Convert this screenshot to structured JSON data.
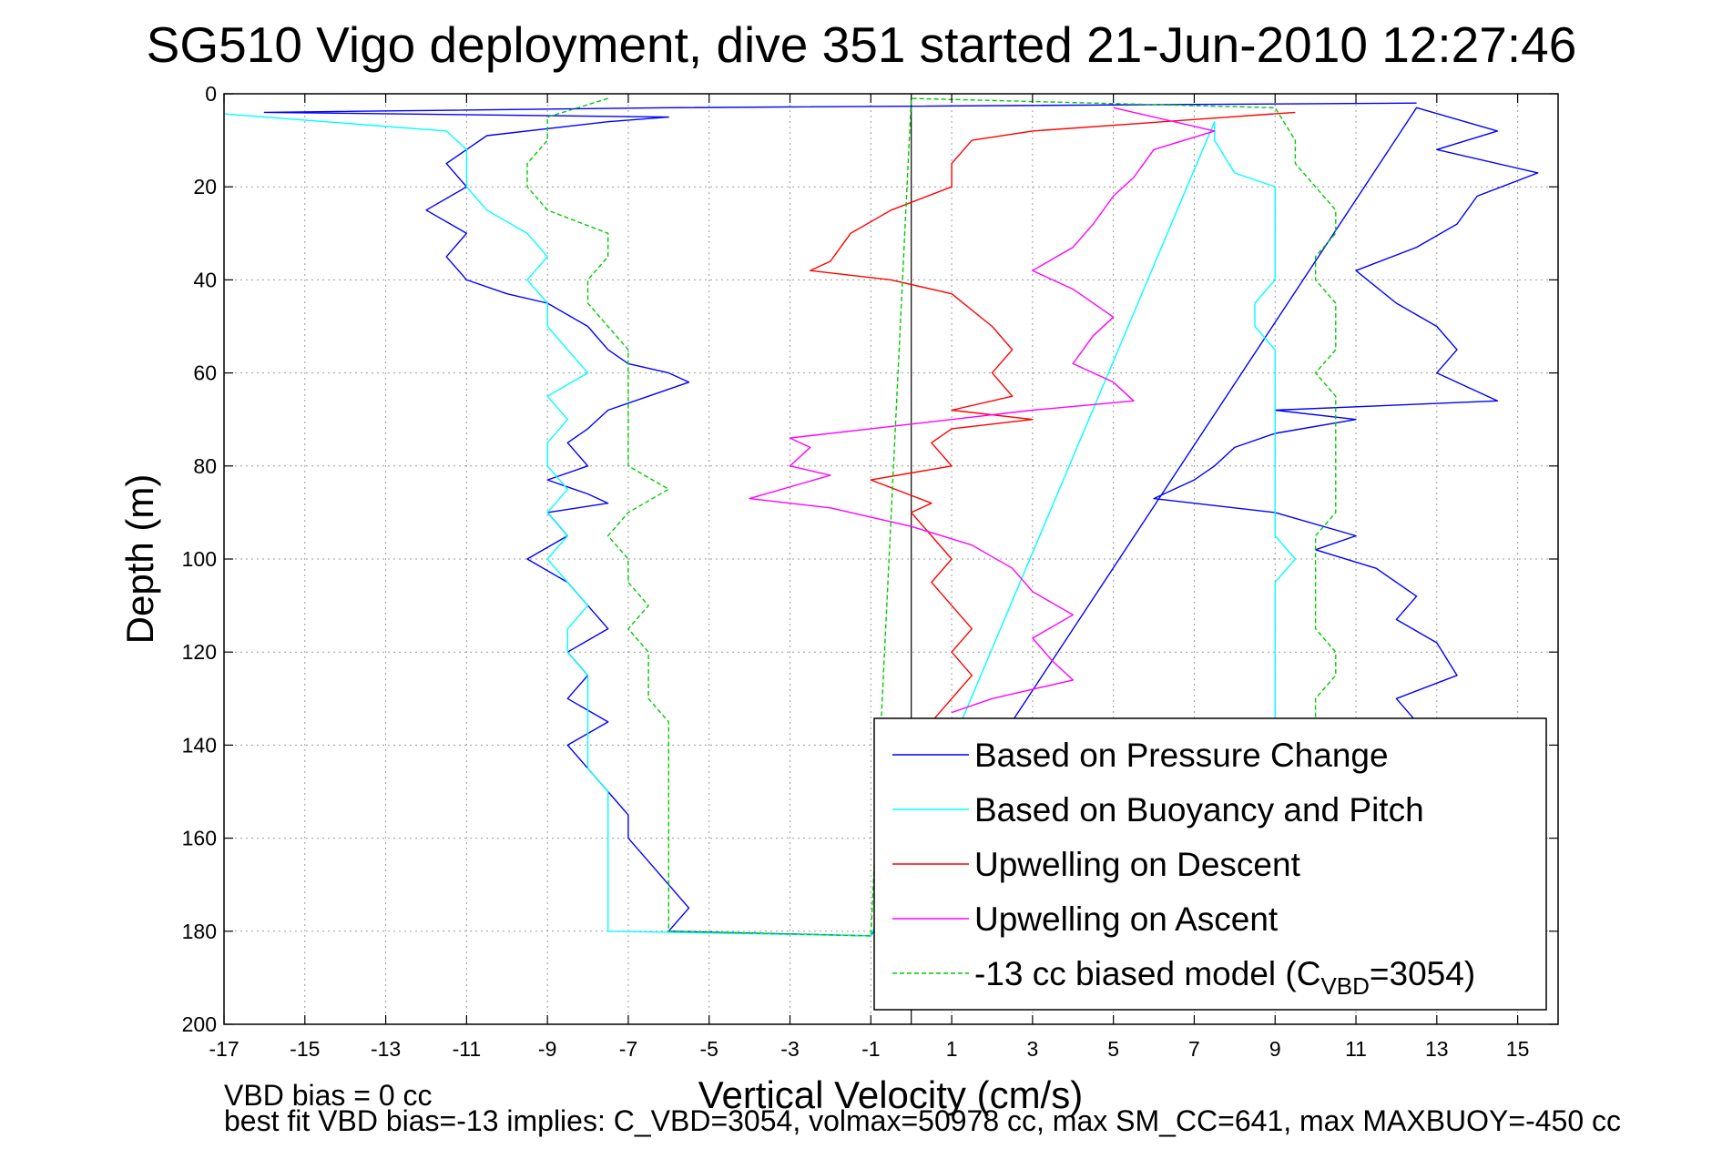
{
  "chart_data": {
    "type": "line",
    "title": "SG510 Vigo deployment, dive 351 started 21-Jun-2010 12:27:46",
    "xlabel": "Vertical Velocity (cm/s)",
    "ylabel": "Depth (m)",
    "xlim": [
      -17,
      16
    ],
    "ylim": [
      0,
      200
    ],
    "y_reversed": true,
    "x_ticks": [
      -17,
      -15,
      -13,
      -11,
      -9,
      -7,
      -5,
      -3,
      -1,
      1,
      3,
      5,
      7,
      9,
      11,
      13,
      15
    ],
    "y_ticks": [
      0,
      20,
      40,
      60,
      80,
      100,
      120,
      140,
      160,
      180,
      200
    ],
    "grid": true,
    "legend_position": "bottom-right",
    "vertical_reference_x": 0,
    "series": [
      {
        "name": "Based on Pressure Change",
        "color": "#0000ff",
        "style": "solid",
        "points": [
          [
            12.5,
            2
          ],
          [
            -6,
            3
          ],
          [
            -16,
            4
          ],
          [
            -6,
            5
          ],
          [
            -7.5,
            6
          ],
          [
            -10.5,
            9
          ],
          [
            -11,
            12
          ],
          [
            -11.5,
            15
          ],
          [
            -11,
            20
          ],
          [
            -12,
            25
          ],
          [
            -11,
            30
          ],
          [
            -11.5,
            35
          ],
          [
            -11,
            40
          ],
          [
            -10,
            43
          ],
          [
            -9,
            45
          ],
          [
            -8,
            50
          ],
          [
            -7.5,
            55
          ],
          [
            -7,
            58
          ],
          [
            -6,
            60
          ],
          [
            -5.5,
            62
          ],
          [
            -6.5,
            65
          ],
          [
            -7.5,
            68
          ],
          [
            -8,
            72
          ],
          [
            -8.5,
            75
          ],
          [
            -8,
            80
          ],
          [
            -9,
            83
          ],
          [
            -8,
            86
          ],
          [
            -7.5,
            88
          ],
          [
            -9,
            90
          ],
          [
            -8.5,
            95
          ],
          [
            -9.5,
            100
          ],
          [
            -8.5,
            105
          ],
          [
            -8,
            110
          ],
          [
            -7.5,
            115
          ],
          [
            -8.5,
            120
          ],
          [
            -8,
            125
          ],
          [
            -8.5,
            130
          ],
          [
            -7.5,
            135
          ],
          [
            -8.5,
            140
          ],
          [
            -8,
            145
          ],
          [
            -7.5,
            150
          ],
          [
            -7,
            155
          ],
          [
            -7,
            160
          ],
          [
            -6.5,
            165
          ],
          [
            -6,
            170
          ],
          [
            -5.5,
            175
          ],
          [
            -6,
            180
          ],
          [
            -1,
            181
          ],
          [
            12.5,
            3
          ],
          [
            14.5,
            8
          ],
          [
            13,
            12
          ],
          [
            15.5,
            17
          ],
          [
            14,
            22
          ],
          [
            13.5,
            28
          ],
          [
            12.5,
            33
          ],
          [
            11,
            38
          ],
          [
            12,
            45
          ],
          [
            13,
            50
          ],
          [
            13.5,
            55
          ],
          [
            13,
            60
          ],
          [
            14.5,
            66
          ],
          [
            9,
            68
          ],
          [
            11,
            70
          ],
          [
            9,
            73
          ],
          [
            8,
            76
          ],
          [
            7.5,
            80
          ],
          [
            7,
            83
          ],
          [
            6,
            87
          ],
          [
            9,
            90
          ],
          [
            11,
            95
          ],
          [
            10,
            98
          ],
          [
            11.5,
            102
          ],
          [
            12.5,
            108
          ],
          [
            12,
            113
          ],
          [
            13,
            118
          ],
          [
            13.5,
            125
          ],
          [
            12,
            130
          ],
          [
            12.5,
            135
          ]
        ]
      },
      {
        "name": "Based on Buoyancy and Pitch",
        "color": "#00ffff",
        "style": "solid",
        "points": [
          [
            -17.5,
            4
          ],
          [
            -11.5,
            8
          ],
          [
            -11,
            12
          ],
          [
            -11,
            20
          ],
          [
            -10.5,
            25
          ],
          [
            -9.5,
            30
          ],
          [
            -9,
            35
          ],
          [
            -9.5,
            40
          ],
          [
            -9,
            45
          ],
          [
            -9,
            50
          ],
          [
            -8.5,
            55
          ],
          [
            -8,
            60
          ],
          [
            -9,
            65
          ],
          [
            -8.5,
            70
          ],
          [
            -9,
            75
          ],
          [
            -9,
            80
          ],
          [
            -8.5,
            85
          ],
          [
            -9,
            90
          ],
          [
            -8.5,
            95
          ],
          [
            -9,
            100
          ],
          [
            -8.5,
            105
          ],
          [
            -8,
            110
          ],
          [
            -8.5,
            115
          ],
          [
            -8.5,
            120
          ],
          [
            -8,
            125
          ],
          [
            -8,
            130
          ],
          [
            -8,
            135
          ],
          [
            -8,
            140
          ],
          [
            -8,
            145
          ],
          [
            -7.5,
            150
          ],
          [
            -7.5,
            155
          ],
          [
            -7.5,
            160
          ],
          [
            -7.5,
            165
          ],
          [
            -7.5,
            170
          ],
          [
            -7.5,
            175
          ],
          [
            -7.5,
            180
          ],
          [
            -1,
            181
          ],
          [
            7.5,
            6
          ],
          [
            7.5,
            10
          ],
          [
            8,
            17
          ],
          [
            9,
            20
          ],
          [
            9,
            30
          ],
          [
            9,
            40
          ],
          [
            8.5,
            45
          ],
          [
            8.5,
            50
          ],
          [
            9,
            55
          ],
          [
            9,
            60
          ],
          [
            9,
            65
          ],
          [
            9,
            70
          ],
          [
            9,
            75
          ],
          [
            9,
            80
          ],
          [
            9,
            85
          ],
          [
            9,
            90
          ],
          [
            9,
            95
          ],
          [
            9.5,
            100
          ],
          [
            9,
            105
          ],
          [
            9,
            110
          ],
          [
            9,
            115
          ],
          [
            9,
            120
          ],
          [
            9,
            125
          ],
          [
            9,
            130
          ],
          [
            9,
            135
          ]
        ]
      },
      {
        "name": "Upwelling on Descent",
        "color": "#ff0000",
        "style": "solid",
        "points": [
          [
            9.5,
            4
          ],
          [
            3,
            8
          ],
          [
            1.5,
            10
          ],
          [
            1,
            15
          ],
          [
            1,
            20
          ],
          [
            -0.5,
            25
          ],
          [
            -1.5,
            30
          ],
          [
            -2,
            36
          ],
          [
            -2.5,
            38
          ],
          [
            -0.5,
            40
          ],
          [
            1,
            43
          ],
          [
            2,
            50
          ],
          [
            2.5,
            55
          ],
          [
            2,
            60
          ],
          [
            2.5,
            65
          ],
          [
            1,
            68
          ],
          [
            3,
            70
          ],
          [
            1,
            72
          ],
          [
            0.5,
            75
          ],
          [
            1,
            80
          ],
          [
            -1,
            83
          ],
          [
            0.5,
            88
          ],
          [
            0,
            90
          ],
          [
            0.5,
            95
          ],
          [
            1,
            100
          ],
          [
            0.5,
            105
          ],
          [
            1,
            110
          ],
          [
            1.5,
            115
          ],
          [
            1,
            120
          ],
          [
            1.5,
            125
          ],
          [
            1,
            130
          ],
          [
            0.5,
            135
          ]
        ]
      },
      {
        "name": "Upwelling on Ascent",
        "color": "#ff00ff",
        "style": "solid",
        "points": [
          [
            5,
            3
          ],
          [
            7.5,
            8
          ],
          [
            6,
            12
          ],
          [
            5.5,
            18
          ],
          [
            5,
            22
          ],
          [
            4.5,
            28
          ],
          [
            4,
            33
          ],
          [
            3,
            38
          ],
          [
            4,
            42
          ],
          [
            5,
            48
          ],
          [
            4.5,
            52
          ],
          [
            4,
            58
          ],
          [
            5,
            62
          ],
          [
            5.5,
            66
          ],
          [
            3,
            68
          ],
          [
            1,
            70
          ],
          [
            -1,
            72
          ],
          [
            -3,
            74
          ],
          [
            -2.5,
            76
          ],
          [
            -3,
            80
          ],
          [
            -2,
            82
          ],
          [
            -4,
            87
          ],
          [
            -2,
            89
          ],
          [
            0,
            93
          ],
          [
            1.5,
            97
          ],
          [
            2.5,
            102
          ],
          [
            3,
            107
          ],
          [
            4,
            112
          ],
          [
            3,
            117
          ],
          [
            3.5,
            122
          ],
          [
            4,
            126
          ],
          [
            2,
            130
          ],
          [
            1,
            133
          ]
        ]
      },
      {
        "name": "-13 cc biased model (C_VBD=3054)",
        "color": "#00cc00",
        "style": "dashed",
        "points": [
          [
            -7.5,
            1
          ],
          [
            -9,
            5
          ],
          [
            -9,
            10
          ],
          [
            -9.5,
            15
          ],
          [
            -9.5,
            20
          ],
          [
            -9,
            25
          ],
          [
            -7.5,
            30
          ],
          [
            -7.5,
            35
          ],
          [
            -8,
            40
          ],
          [
            -8,
            45
          ],
          [
            -7.5,
            50
          ],
          [
            -7,
            55
          ],
          [
            -7,
            60
          ],
          [
            -7,
            65
          ],
          [
            -7,
            70
          ],
          [
            -7,
            75
          ],
          [
            -7,
            80
          ],
          [
            -6,
            85
          ],
          [
            -7,
            90
          ],
          [
            -7.5,
            95
          ],
          [
            -7,
            100
          ],
          [
            -7,
            105
          ],
          [
            -6.5,
            110
          ],
          [
            -7,
            115
          ],
          [
            -6.5,
            120
          ],
          [
            -6.5,
            125
          ],
          [
            -6.5,
            130
          ],
          [
            -6,
            135
          ],
          [
            -6,
            140
          ],
          [
            -6,
            145
          ],
          [
            -6,
            150
          ],
          [
            -6,
            155
          ],
          [
            -6,
            160
          ],
          [
            -6,
            165
          ],
          [
            -6,
            170
          ],
          [
            -6,
            175
          ],
          [
            -6,
            180
          ],
          [
            -1,
            181
          ],
          [
            0,
            1
          ],
          [
            9,
            3
          ],
          [
            9.5,
            10
          ],
          [
            9.5,
            15
          ],
          [
            10,
            20
          ],
          [
            10.5,
            25
          ],
          [
            10.5,
            30
          ],
          [
            10,
            35
          ],
          [
            10,
            40
          ],
          [
            10.5,
            45
          ],
          [
            10.5,
            50
          ],
          [
            10.5,
            55
          ],
          [
            10,
            60
          ],
          [
            10.5,
            65
          ],
          [
            10.5,
            70
          ],
          [
            10.5,
            75
          ],
          [
            10.5,
            80
          ],
          [
            10.5,
            85
          ],
          [
            10.5,
            90
          ],
          [
            10,
            95
          ],
          [
            10,
            100
          ],
          [
            10,
            105
          ],
          [
            10,
            110
          ],
          [
            10,
            115
          ],
          [
            10.5,
            120
          ],
          [
            10.5,
            125
          ],
          [
            10,
            130
          ],
          [
            10,
            135
          ]
        ]
      }
    ]
  },
  "legend": {
    "items": [
      {
        "label": "Based on Pressure Change"
      },
      {
        "label": "Based on Buoyancy and Pitch"
      },
      {
        "label": "Upwelling on Descent"
      },
      {
        "label": "Upwelling on Ascent"
      },
      {
        "label_prefix": "-13 cc biased model (C",
        "label_sub": "VBD",
        "label_suffix": "=3054)"
      }
    ]
  },
  "footer": {
    "line1": "VBD bias = 0 cc",
    "line2": "best fit VBD bias=-13 implies: C_VBD=3054, volmax=50978 cc, max SM_CC=641, max MAXBUOY=-450 cc"
  }
}
